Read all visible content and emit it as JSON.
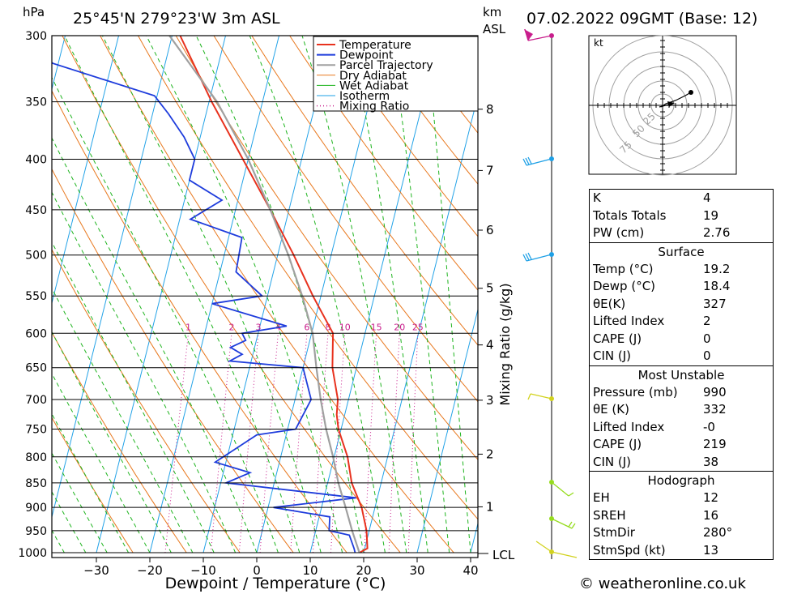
{
  "header": {
    "hpa_unit": "hPa",
    "location": "25°45'N 279°23'W 3m ASL",
    "km_unit": "km",
    "asl_label": "ASL",
    "datetime": "07.02.2022 09GMT (Base: 12)"
  },
  "footer": {
    "copyright": "© weatheronline.co.uk"
  },
  "hodograph": {
    "unit": "kt",
    "ring_labels": [
      "25",
      "50",
      "75"
    ]
  },
  "stats": {
    "general": [
      {
        "label": "K",
        "value": "4"
      },
      {
        "label": "Totals Totals",
        "value": "19"
      },
      {
        "label": "PW (cm)",
        "value": "2.76"
      }
    ],
    "surface": {
      "title": "Surface",
      "rows": [
        {
          "label": "Temp (°C)",
          "value": "19.2"
        },
        {
          "label": "Dewp (°C)",
          "value": "18.4"
        },
        {
          "label": "θE(K)",
          "value": "327"
        },
        {
          "label": "Lifted Index",
          "value": "2"
        },
        {
          "label": "CAPE (J)",
          "value": "0"
        },
        {
          "label": "CIN (J)",
          "value": "0"
        }
      ]
    },
    "most_unstable": {
      "title": "Most Unstable",
      "rows": [
        {
          "label": "Pressure (mb)",
          "value": "990"
        },
        {
          "label": "θE (K)",
          "value": "332"
        },
        {
          "label": "Lifted Index",
          "value": "-0"
        },
        {
          "label": "CAPE (J)",
          "value": "219"
        },
        {
          "label": "CIN (J)",
          "value": "38"
        }
      ]
    },
    "hodograph": {
      "title": "Hodograph",
      "rows": [
        {
          "label": "EH",
          "value": "12"
        },
        {
          "label": "SREH",
          "value": "16"
        },
        {
          "label": "StmDir",
          "value": "280°"
        },
        {
          "label": "StmSpd (kt)",
          "value": "13"
        }
      ]
    }
  },
  "chart_data": {
    "type": "line",
    "title": "25°45'N 279°23'W 3m ASL",
    "xlabel": "Dewpoint / Temperature (°C)",
    "ylabel": "hPa",
    "y_scale": "log",
    "y_right_label": "Mixing Ratio (g/kg)",
    "pressure_ticks": [
      300,
      350,
      400,
      450,
      500,
      550,
      600,
      650,
      700,
      750,
      800,
      850,
      900,
      950,
      1000
    ],
    "temp_ticks": [
      -30,
      -20,
      -10,
      0,
      10,
      20,
      30,
      40
    ],
    "xlim": [
      -40,
      40
    ],
    "ylim": [
      1000,
      300
    ],
    "km_ticks": [
      "1",
      "2",
      "3",
      "4",
      "5",
      "6",
      "7",
      "8"
    ],
    "lcl_label": "LCL",
    "mixing_ratio_labels": [
      "1",
      "2",
      "3",
      "4",
      "6",
      "8",
      "10",
      "15",
      "20",
      "25"
    ],
    "legend": [
      "Temperature",
      "Dewpoint",
      "Parcel Trajectory",
      "Dry Adiabat",
      "Wet Adiabat",
      "Isotherm",
      "Mixing Ratio"
    ],
    "colors": {
      "temperature": "#e8321e",
      "dewpoint": "#1e3cdc",
      "parcel": "#a0a0a0",
      "dry": "#e8781e",
      "wet": "#1eb41e",
      "isotherm": "#1ea0e6",
      "mixing": "#c81e8c"
    },
    "series": [
      {
        "name": "Temperature",
        "points": [
          [
            1000,
            19.2
          ],
          [
            990,
            20.5
          ],
          [
            950,
            19.5
          ],
          [
            900,
            17.5
          ],
          [
            850,
            14.5
          ],
          [
            800,
            12.5
          ],
          [
            750,
            9.5
          ],
          [
            725,
            8.5
          ],
          [
            700,
            8.0
          ],
          [
            650,
            5.5
          ],
          [
            600,
            4.0
          ],
          [
            550,
            -1.5
          ],
          [
            500,
            -7.0
          ],
          [
            450,
            -13.5
          ],
          [
            400,
            -21.0
          ],
          [
            350,
            -29.5
          ],
          [
            300,
            -38.5
          ]
        ]
      },
      {
        "name": "Dewpoint",
        "points": [
          [
            1000,
            18.4
          ],
          [
            990,
            18.0
          ],
          [
            960,
            16.5
          ],
          [
            950,
            12.5
          ],
          [
            920,
            12.0
          ],
          [
            900,
            1.0
          ],
          [
            880,
            16.0
          ],
          [
            850,
            -9.0
          ],
          [
            830,
            -5.0
          ],
          [
            810,
            -12.0
          ],
          [
            760,
            -5.5
          ],
          [
            750,
            1.5
          ],
          [
            700,
            3.0
          ],
          [
            650,
            0.0
          ],
          [
            640,
            -14.0
          ],
          [
            630,
            -12.0
          ],
          [
            620,
            -14.5
          ],
          [
            610,
            -12.0
          ],
          [
            600,
            -13.0
          ],
          [
            590,
            -5.0
          ],
          [
            560,
            -20.0
          ],
          [
            550,
            -11.0
          ],
          [
            520,
            -17.0
          ],
          [
            480,
            -17.5
          ],
          [
            460,
            -28.0
          ],
          [
            440,
            -23.0
          ],
          [
            420,
            -30.0
          ],
          [
            400,
            -30.0
          ],
          [
            380,
            -33.0
          ],
          [
            360,
            -37.0
          ],
          [
            345,
            -40.5
          ],
          [
            320,
            -61.0
          ],
          [
            300,
            -70.0
          ]
        ]
      },
      {
        "name": "Parcel Trajectory",
        "points": [
          [
            1000,
            19.2
          ],
          [
            950,
            16.8
          ],
          [
            900,
            14.5
          ],
          [
            850,
            12.0
          ],
          [
            800,
            9.8
          ],
          [
            750,
            7.2
          ],
          [
            700,
            4.8
          ],
          [
            650,
            2.5
          ],
          [
            600,
            0.2
          ],
          [
            550,
            -3.5
          ],
          [
            500,
            -8.0
          ],
          [
            450,
            -13.5
          ],
          [
            400,
            -20.0
          ],
          [
            350,
            -28.5
          ],
          [
            300,
            -40.5
          ]
        ]
      }
    ]
  }
}
